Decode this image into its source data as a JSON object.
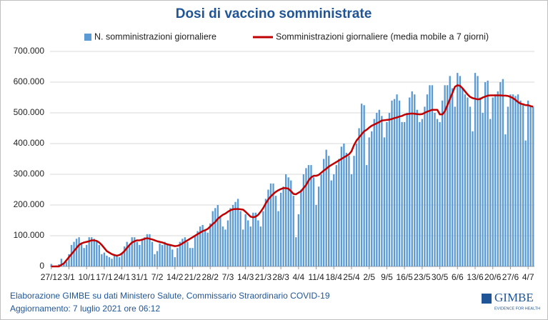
{
  "chart_data": {
    "type": "bar_line",
    "title": "Dosi di vaccino somministrate",
    "categories": [
      "27/12",
      null,
      null,
      null,
      null,
      null,
      null,
      "3/1",
      null,
      null,
      null,
      null,
      null,
      null,
      "10/1",
      null,
      null,
      null,
      null,
      null,
      null,
      "17/1",
      null,
      null,
      null,
      null,
      null,
      null,
      "24/1",
      null,
      null,
      null,
      null,
      null,
      null,
      "31/1",
      null,
      null,
      null,
      null,
      null,
      null,
      "7/2",
      null,
      null,
      null,
      null,
      null,
      null,
      "14/2",
      null,
      null,
      null,
      null,
      null,
      null,
      "21/2",
      null,
      null,
      null,
      null,
      null,
      null,
      "28/2",
      null,
      null,
      null,
      null,
      null,
      null,
      "7/3",
      null,
      null,
      null,
      null,
      null,
      null,
      "14/3",
      null,
      null,
      null,
      null,
      null,
      null,
      "21/3",
      null,
      null,
      null,
      null,
      null,
      null,
      "28/3",
      null,
      null,
      null,
      null,
      null,
      null,
      "4/4",
      null,
      null,
      null,
      null,
      null,
      null,
      "11/4",
      null,
      null,
      null,
      null,
      null,
      null,
      "18/4",
      null,
      null,
      null,
      null,
      null,
      null,
      "25/4",
      null,
      null,
      null,
      null,
      null,
      null,
      "2/5",
      null,
      null,
      null,
      null,
      null,
      null,
      "9/5",
      null,
      null,
      null,
      null,
      null,
      null,
      "16/5",
      null,
      null,
      null,
      null,
      null,
      null,
      "23/5",
      null,
      null,
      null,
      null,
      null,
      null,
      "30/5",
      null,
      null,
      null,
      null,
      null,
      null,
      "6/6",
      null,
      null,
      null,
      null,
      null,
      null,
      "13/6",
      null,
      null,
      null,
      null,
      null,
      null,
      "20/6",
      null,
      null,
      null,
      null,
      null,
      null,
      "27/6",
      null,
      null,
      null,
      null,
      null,
      null,
      "4/7",
      null,
      null
    ],
    "series": [
      {
        "name": "N. somministrazioni giornaliere",
        "kind": "bar",
        "color": "#5b9bd5",
        "values": [
          8000,
          2000,
          3000,
          7000,
          25000,
          10000,
          15000,
          40000,
          70000,
          80000,
          90000,
          95000,
          75000,
          60000,
          70000,
          95000,
          95000,
          90000,
          85000,
          70000,
          40000,
          45000,
          35000,
          30000,
          25000,
          40000,
          35000,
          30000,
          45000,
          65000,
          80000,
          70000,
          95000,
          95000,
          80000,
          70000,
          90000,
          95000,
          105000,
          105000,
          80000,
          40000,
          50000,
          75000,
          70000,
          80000,
          75000,
          70000,
          55000,
          30000,
          60000,
          80000,
          90000,
          95000,
          80000,
          60000,
          60000,
          100000,
          115000,
          130000,
          135000,
          120000,
          110000,
          140000,
          180000,
          190000,
          200000,
          160000,
          130000,
          120000,
          150000,
          190000,
          200000,
          210000,
          220000,
          180000,
          120000,
          170000,
          150000,
          130000,
          175000,
          175000,
          150000,
          130000,
          180000,
          220000,
          250000,
          270000,
          270000,
          230000,
          180000,
          240000,
          260000,
          300000,
          290000,
          280000,
          230000,
          95000,
          170000,
          250000,
          300000,
          320000,
          330000,
          330000,
          290000,
          200000,
          260000,
          300000,
          350000,
          380000,
          360000,
          280000,
          300000,
          330000,
          350000,
          390000,
          400000,
          370000,
          360000,
          300000,
          360000,
          400000,
          450000,
          530000,
          525000,
          330000,
          420000,
          440000,
          480000,
          500000,
          510000,
          490000,
          420000,
          470000,
          500000,
          540000,
          545000,
          560000,
          540000,
          470000,
          470000,
          500000,
          550000,
          570000,
          560000,
          510000,
          470000,
          480000,
          520000,
          560000,
          590000,
          590000,
          500000,
          480000,
          470000,
          540000,
          590000,
          590000,
          620000,
          580000,
          520000,
          630000,
          620000,
          580000,
          560000,
          550000,
          520000,
          440000,
          630000,
          620000,
          550000,
          500000,
          600000,
          605000,
          480000,
          550000,
          560000,
          570000,
          600000,
          610000,
          430000,
          520000,
          560000,
          560000,
          555000,
          560000,
          540000,
          530000,
          410000,
          540000,
          520000,
          520000
        ]
      },
      {
        "name": "Somministrazioni giornaliere (media mobile a 7 giorni)",
        "kind": "line",
        "color": "#c00000",
        "values": [
          0,
          0,
          0,
          0,
          5000,
          10000,
          20000,
          30000,
          40000,
          50000,
          60000,
          70000,
          75000,
          78000,
          80000,
          82000,
          85000,
          85000,
          83000,
          78000,
          70000,
          60000,
          50000,
          45000,
          40000,
          37000,
          35000,
          37000,
          42000,
          50000,
          60000,
          70000,
          78000,
          82000,
          85000,
          85000,
          87000,
          90000,
          92000,
          90000,
          88000,
          85000,
          82000,
          80000,
          78000,
          75000,
          72000,
          70000,
          68000,
          66000,
          67000,
          70000,
          75000,
          80000,
          85000,
          90000,
          95000,
          100000,
          105000,
          110000,
          115000,
          118000,
          122000,
          130000,
          138000,
          145000,
          155000,
          162000,
          168000,
          172000,
          178000,
          183000,
          186000,
          187000,
          187000,
          186000,
          185000,
          178000,
          170000,
          162000,
          160000,
          162000,
          168000,
          178000,
          190000,
          205000,
          218000,
          228000,
          236000,
          243000,
          248000,
          252000,
          255000,
          255000,
          253000,
          245000,
          236000,
          235000,
          240000,
          245000,
          255000,
          265000,
          280000,
          290000,
          295000,
          295000,
          298000,
          305000,
          312000,
          318000,
          325000,
          330000,
          335000,
          340000,
          345000,
          350000,
          355000,
          360000,
          365000,
          375000,
          395000,
          410000,
          420000,
          430000,
          440000,
          445000,
          452000,
          458000,
          462000,
          466000,
          470000,
          475000,
          476000,
          477000,
          478000,
          480000,
          483000,
          485000,
          488000,
          490000,
          494000,
          496000,
          497000,
          498000,
          497000,
          496000,
          495000,
          496000,
          500000,
          504000,
          507000,
          510000,
          510000,
          510000,
          495000,
          495000,
          505000,
          525000,
          545000,
          565000,
          585000,
          590000,
          588000,
          580000,
          570000,
          560000,
          552000,
          548000,
          546000,
          544000,
          545000,
          550000,
          553000,
          556000,
          557000,
          557000,
          557000,
          557000,
          557000,
          556000,
          556000,
          555000,
          552000,
          548000,
          542000,
          535000,
          530000,
          528000,
          525000,
          525000,
          522000,
          520000
        ]
      }
    ],
    "ylim": [
      0,
      700000
    ],
    "yticks": [
      0,
      {
        "value": 100000,
        "label": "100.000"
      },
      {
        "value": 200000,
        "label": "200.000"
      },
      {
        "value": 300000,
        "label": "300.000"
      },
      {
        "value": 400000,
        "label": "400.000"
      },
      {
        "value": 500000,
        "label": "500.000"
      },
      {
        "value": 600000,
        "label": "600.000"
      },
      {
        "value": 700000,
        "label": "700.000"
      }
    ],
    "grid": true,
    "legend": "top"
  },
  "footer": {
    "source": "Elaborazione GIMBE su dati Ministero Salute, Commissario Straordinario COVID-19",
    "updated": "Aggiornamento: 7 luglio 2021 ore 06:12",
    "logo": "GIMBE",
    "logo_tagline": "EVIDENCE FOR HEALTH"
  }
}
